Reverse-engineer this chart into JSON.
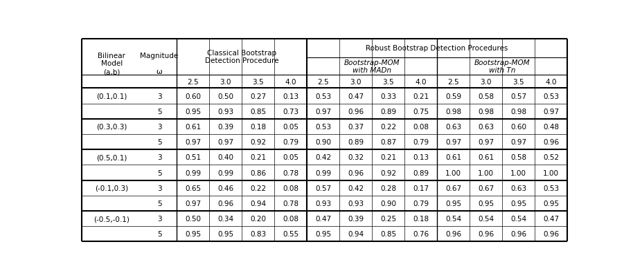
{
  "rows": [
    [
      "(0.1,0.1)",
      "3",
      "0.60",
      "0.50",
      "0.27",
      "0.13",
      "0.53",
      "0.47",
      "0.33",
      "0.21",
      "0.59",
      "0.58",
      "0.57",
      "0.53"
    ],
    [
      "",
      "5",
      "0.95",
      "0.93",
      "0.85",
      "0.73",
      "0.97",
      "0.96",
      "0.89",
      "0.75",
      "0.98",
      "0.98",
      "0.98",
      "0.97"
    ],
    [
      "(0.3,0.3)",
      "3",
      "0.61",
      "0.39",
      "0.18",
      "0.05",
      "0.53",
      "0.37",
      "0.22",
      "0.08",
      "0.63",
      "0.63",
      "0.60",
      "0.48"
    ],
    [
      "",
      "5",
      "0.97",
      "0.97",
      "0.92",
      "0.79",
      "0.90",
      "0.89",
      "0.87",
      "0.79",
      "0.97",
      "0.97",
      "0.97",
      "0.96"
    ],
    [
      "(0.5,0.1)",
      "3",
      "0.51",
      "0.40",
      "0.21",
      "0.05",
      "0.42",
      "0.32",
      "0.21",
      "0.13",
      "0.61",
      "0.61",
      "0.58",
      "0.52"
    ],
    [
      "",
      "5",
      "0.99",
      "0.99",
      "0.86",
      "0.78",
      "0.99",
      "0.96",
      "0.92",
      "0.89",
      "1.00",
      "1.00",
      "1.00",
      "1.00"
    ],
    [
      "(-0.1,0.3)",
      "3",
      "0.65",
      "0.46",
      "0.22",
      "0.08",
      "0.57",
      "0.42",
      "0.28",
      "0.17",
      "0.67",
      "0.67",
      "0.63",
      "0.53"
    ],
    [
      "",
      "5",
      "0.97",
      "0.96",
      "0.94",
      "0.78",
      "0.93",
      "0.93",
      "0.90",
      "0.79",
      "0.95",
      "0.95",
      "0.95",
      "0.95"
    ],
    [
      "(-0.5,-0.1)",
      "3",
      "0.50",
      "0.34",
      "0.20",
      "0.08",
      "0.47",
      "0.39",
      "0.25",
      "0.18",
      "0.54",
      "0.54",
      "0.54",
      "0.47"
    ],
    [
      "",
      "5",
      "0.95",
      "0.95",
      "0.83",
      "0.55",
      "0.95",
      "0.94",
      "0.85",
      "0.76",
      "0.96",
      "0.96",
      "0.96",
      "0.96"
    ]
  ],
  "subheaders": [
    "2.5",
    "3.0",
    "3.5",
    "4.0",
    "2.5",
    "3.0",
    "3.5",
    "4.0",
    "2.5",
    "3.0",
    "3.5",
    "4.0"
  ],
  "group_separators": [
    2,
    4,
    6,
    8
  ],
  "bg_color": "#ffffff",
  "text_color": "#000000",
  "line_color": "#000000",
  "header_title_col0": "Bilinear\nModel\n(a,b)",
  "header_title_col1": "Magnitude\n\nω",
  "header_classical": "Classical Bootstrap\nDetection Procedure",
  "header_robust": "Robust Bootstrap Detection Procedures",
  "header_madn": "Bootstrap-MOM\nwith MADn",
  "header_tn": "Bootstrap-MOM\nwith Tn"
}
